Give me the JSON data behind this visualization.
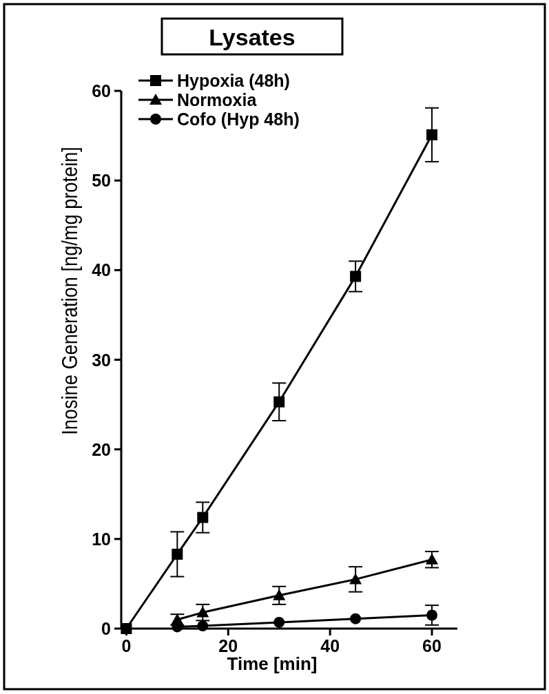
{
  "chart_data": {
    "type": "line",
    "title": "Lysates",
    "xlabel": "Time [min]",
    "ylabel": "Inosine Generation [ng/mg protein]",
    "x": [
      0,
      10,
      15,
      30,
      45,
      60
    ],
    "series": [
      {
        "name": "Hypoxia (48h)",
        "color": "#000000",
        "marker": "square",
        "values": [
          0,
          8.3,
          12.4,
          25.3,
          39.3,
          55.1
        ],
        "errors": [
          null,
          2.5,
          1.7,
          2.1,
          1.7,
          3.0
        ]
      },
      {
        "name": "Normoxia",
        "color": "#000000",
        "marker": "triangle",
        "values": [
          null,
          1.0,
          1.8,
          3.7,
          5.5,
          7.7
        ],
        "errors": [
          null,
          0.6,
          0.9,
          1.0,
          1.4,
          0.9
        ]
      },
      {
        "name": "Cofo (Hyp 48h)",
        "color": "#000000",
        "marker": "circle",
        "values": [
          null,
          0.2,
          0.3,
          0.7,
          1.1,
          1.5
        ],
        "errors": [
          null,
          null,
          null,
          null,
          null,
          1.1
        ]
      }
    ],
    "xlim": [
      -1,
      65
    ],
    "xticks": [
      0,
      20,
      40,
      60
    ],
    "ylim": [
      0,
      60
    ],
    "yticks": [
      0,
      10,
      20,
      30,
      40,
      50,
      60
    ],
    "grid": false,
    "legend": "top left",
    "line_style": "solid"
  }
}
